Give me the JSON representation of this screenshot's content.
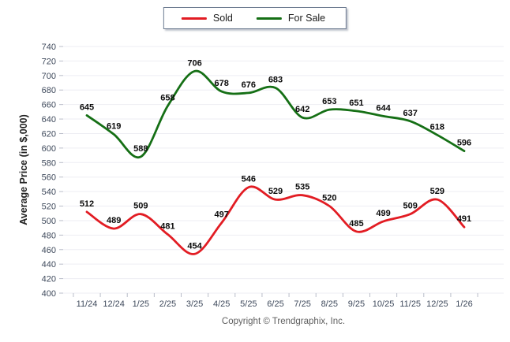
{
  "chart_data": {
    "type": "line",
    "x": [
      "11/24",
      "12/24",
      "1/25",
      "2/25",
      "3/25",
      "4/25",
      "5/25",
      "6/25",
      "7/25",
      "8/25",
      "9/25",
      "10/25",
      "11/25",
      "12/25",
      "1/26"
    ],
    "series": [
      {
        "name": "Sold",
        "color": "#e21c23",
        "values": [
          512,
          489,
          509,
          481,
          454,
          497,
          546,
          529,
          535,
          520,
          485,
          499,
          509,
          529,
          491
        ]
      },
      {
        "name": "For Sale",
        "color": "#156f15",
        "values": [
          645,
          619,
          588,
          658,
          706,
          678,
          676,
          683,
          642,
          653,
          651,
          644,
          637,
          618,
          596
        ]
      }
    ],
    "title": "",
    "xlabel": "",
    "ylabel": "Average Price (in $,000)",
    "ylim": [
      400,
      740
    ],
    "ytick_step": 20,
    "grid": "horizontal",
    "legend_position": "top-center",
    "data_labels": true,
    "smooth": true
  },
  "colors": {
    "gridline": "#ededf3",
    "tick": "#b9bdc9",
    "axis_text": "#3f4a5c",
    "data_label": "#0a0a0a",
    "ylabel_text": "#222222"
  },
  "footer": {
    "copyright": "Copyright © Trendgraphix, Inc."
  }
}
